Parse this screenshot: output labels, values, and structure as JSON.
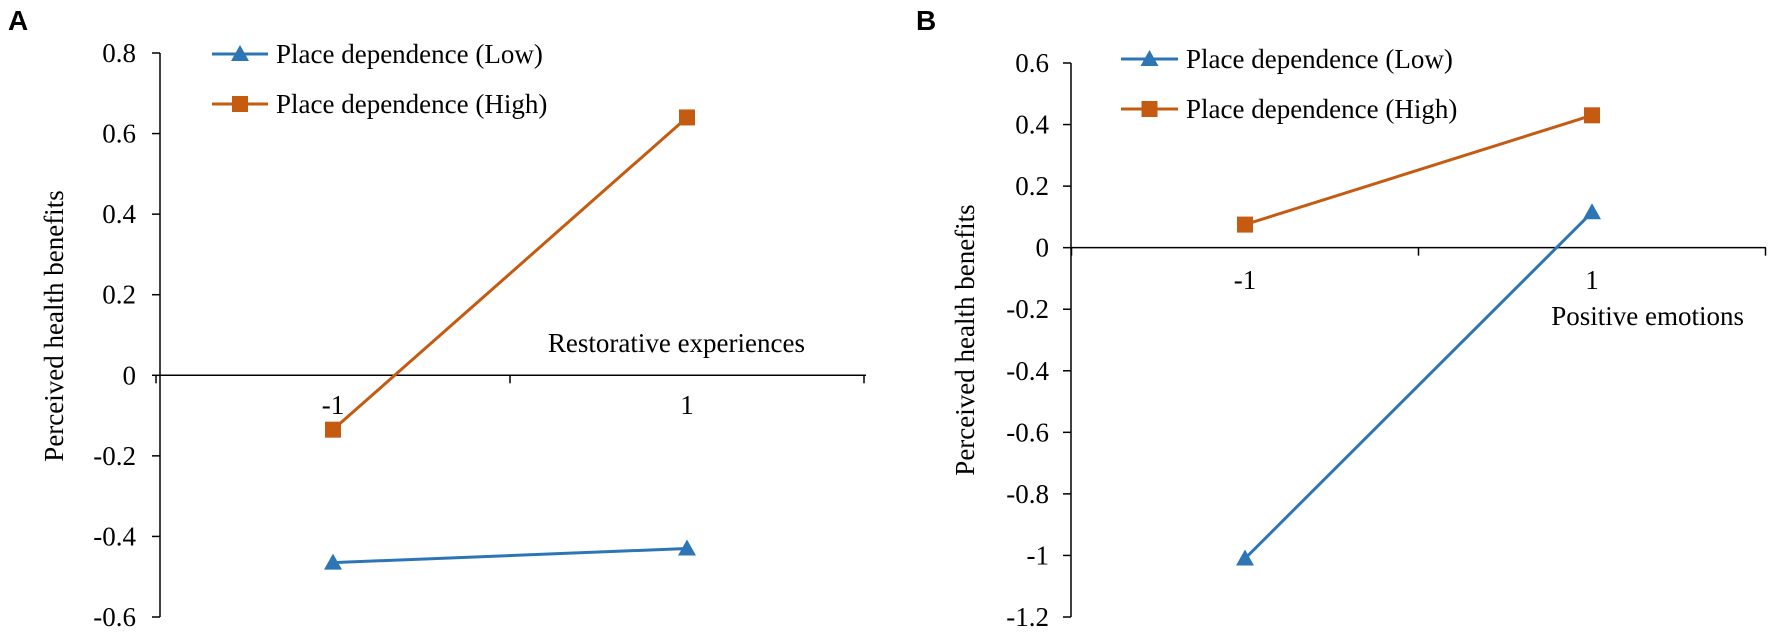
{
  "colors": {
    "low": "#2E75B6",
    "high": "#C55A11",
    "axis": "#000000"
  },
  "chart_data": [
    {
      "type": "line",
      "panel_label": "A",
      "title": "",
      "xlabel": "Restorative experiences",
      "ylabel": "Perceived health benefits",
      "categories": [
        "-1",
        "1"
      ],
      "x": [
        -1,
        1
      ],
      "ylim": [
        -0.6,
        0.8
      ],
      "yticks": [
        -0.6,
        -0.4,
        -0.2,
        0,
        0.2,
        0.4,
        0.6,
        0.8
      ],
      "ytick_labels": [
        "-0.6",
        "-0.4",
        "-0.2",
        "0",
        "0.2",
        "0.4",
        "0.6",
        "0.8"
      ],
      "legend_position": "top-left",
      "series": [
        {
          "name": "Place dependence (Low)",
          "marker": "triangle",
          "color_key": "low",
          "values": [
            -0.465,
            -0.43
          ]
        },
        {
          "name": "Place dependence (High)",
          "marker": "square",
          "color_key": "high",
          "values": [
            -0.135,
            0.64
          ]
        }
      ]
    },
    {
      "type": "line",
      "panel_label": "B",
      "title": "",
      "xlabel": "Positive emotions",
      "ylabel": "Perceived health benefits",
      "categories": [
        "-1",
        "1"
      ],
      "x": [
        -1,
        1
      ],
      "ylim": [
        -1.2,
        0.6
      ],
      "yticks": [
        -1.2,
        -1,
        -0.8,
        -0.6,
        -0.4,
        -0.2,
        0,
        0.2,
        0.4,
        0.6
      ],
      "ytick_labels": [
        "-1.2",
        "-1",
        "-0.8",
        "-0.6",
        "-0.4",
        "-0.2",
        "0",
        "0.2",
        "0.4",
        "0.6"
      ],
      "legend_position": "top-left",
      "series": [
        {
          "name": "Place dependence (Low)",
          "marker": "triangle",
          "color_key": "low",
          "values": [
            -1.01,
            0.115
          ]
        },
        {
          "name": "Place dependence (High)",
          "marker": "square",
          "color_key": "high",
          "values": [
            0.075,
            0.43
          ]
        }
      ]
    }
  ]
}
